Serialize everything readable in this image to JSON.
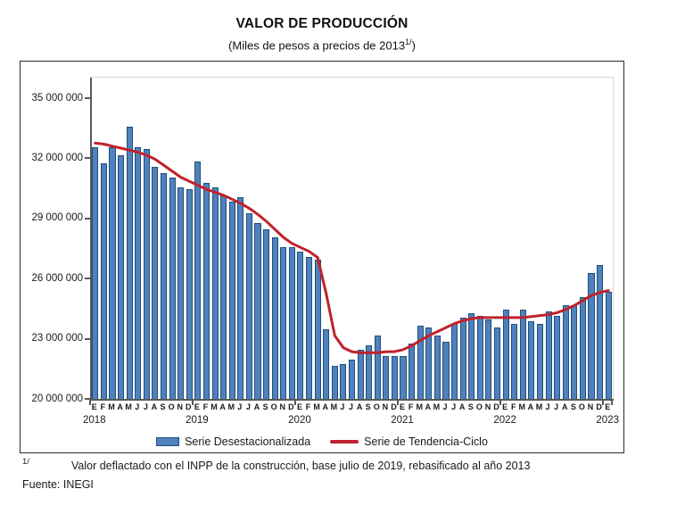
{
  "title": "VALOR DE PRODUCCIÓN",
  "subtitle": {
    "text": "(Miles de pesos a precios de 2013",
    "sup": "1/",
    "close": ")"
  },
  "legend": {
    "bars": "Serie Desestacionalizada",
    "line": "Serie de Tendencia-Ciclo"
  },
  "footnote": {
    "sup": "1/",
    "text": "Valor deflactado con el INPP de la construcción, base julio de 2019, rebasificado al año 2013",
    "source": "Fuente: INEGI"
  },
  "colors": {
    "bar_fill": "#4f81bd",
    "bar_border": "#1f4e79",
    "trend_line": "#c0222b",
    "axis": "#595959"
  },
  "chart_data": {
    "type": "bar",
    "title": "VALOR DE PRODUCCIÓN",
    "subtitle": "(Miles de pesos a precios de 2013 1/)",
    "xlabel": "",
    "ylabel": "Miles de pesos a precios de 2013",
    "ylim": [
      20000000,
      35000000
    ],
    "grid": false,
    "legend_position": "bottom",
    "y_tick_labels": [
      "35 000 000",
      "32 000 000",
      "29 000 000",
      "26 000 000",
      "23 000 000",
      "20 000 000"
    ],
    "y_tick_values": [
      35000000,
      32000000,
      29000000,
      26000000,
      23000000,
      20000000
    ],
    "month_letters": [
      "E",
      "F",
      "M",
      "A",
      "M",
      "J",
      "J",
      "A",
      "S",
      "O",
      "N",
      "D"
    ],
    "x_years": [
      "2018",
      "2019",
      "2020",
      "2021",
      "2022",
      "2023"
    ],
    "n_points": 61,
    "series": [
      {
        "name": "Serie Desestacionalizada",
        "type": "bar",
        "color": "#4f81bd",
        "values": [
          32600000,
          31800000,
          32600000,
          32200000,
          33600000,
          32600000,
          32500000,
          31600000,
          31300000,
          31100000,
          30600000,
          30500000,
          31900000,
          30800000,
          30600000,
          30200000,
          29900000,
          30100000,
          29300000,
          28800000,
          28500000,
          28100000,
          27600000,
          27600000,
          27400000,
          27100000,
          27000000,
          23500000,
          21700000,
          21800000,
          22000000,
          22500000,
          22700000,
          23200000,
          22200000,
          22200000,
          22200000,
          22800000,
          23700000,
          23600000,
          23200000,
          22900000,
          23800000,
          24100000,
          24300000,
          24200000,
          24000000,
          23600000,
          24500000,
          23800000,
          24500000,
          23900000,
          23800000,
          24400000,
          24200000,
          24700000,
          24700000,
          25100000,
          26300000,
          26700000,
          25400000
        ]
      },
      {
        "name": "Serie de Tendencia-Ciclo",
        "type": "line",
        "color": "#c0222b",
        "values": [
          32800000,
          32750000,
          32650000,
          32550000,
          32450000,
          32350000,
          32200000,
          32000000,
          31700000,
          31400000,
          31100000,
          30900000,
          30700000,
          30500000,
          30350000,
          30200000,
          30000000,
          29800000,
          29550000,
          29250000,
          28900000,
          28500000,
          28100000,
          27800000,
          27600000,
          27400000,
          27100000,
          25300000,
          23200000,
          22600000,
          22400000,
          22350000,
          22350000,
          22350000,
          22400000,
          22400000,
          22500000,
          22700000,
          22950000,
          23200000,
          23400000,
          23600000,
          23800000,
          23950000,
          24050000,
          24100000,
          24100000,
          24100000,
          24100000,
          24100000,
          24100000,
          24150000,
          24200000,
          24250000,
          24350000,
          24500000,
          24700000,
          24950000,
          25200000,
          25350000,
          25450000
        ]
      }
    ]
  }
}
